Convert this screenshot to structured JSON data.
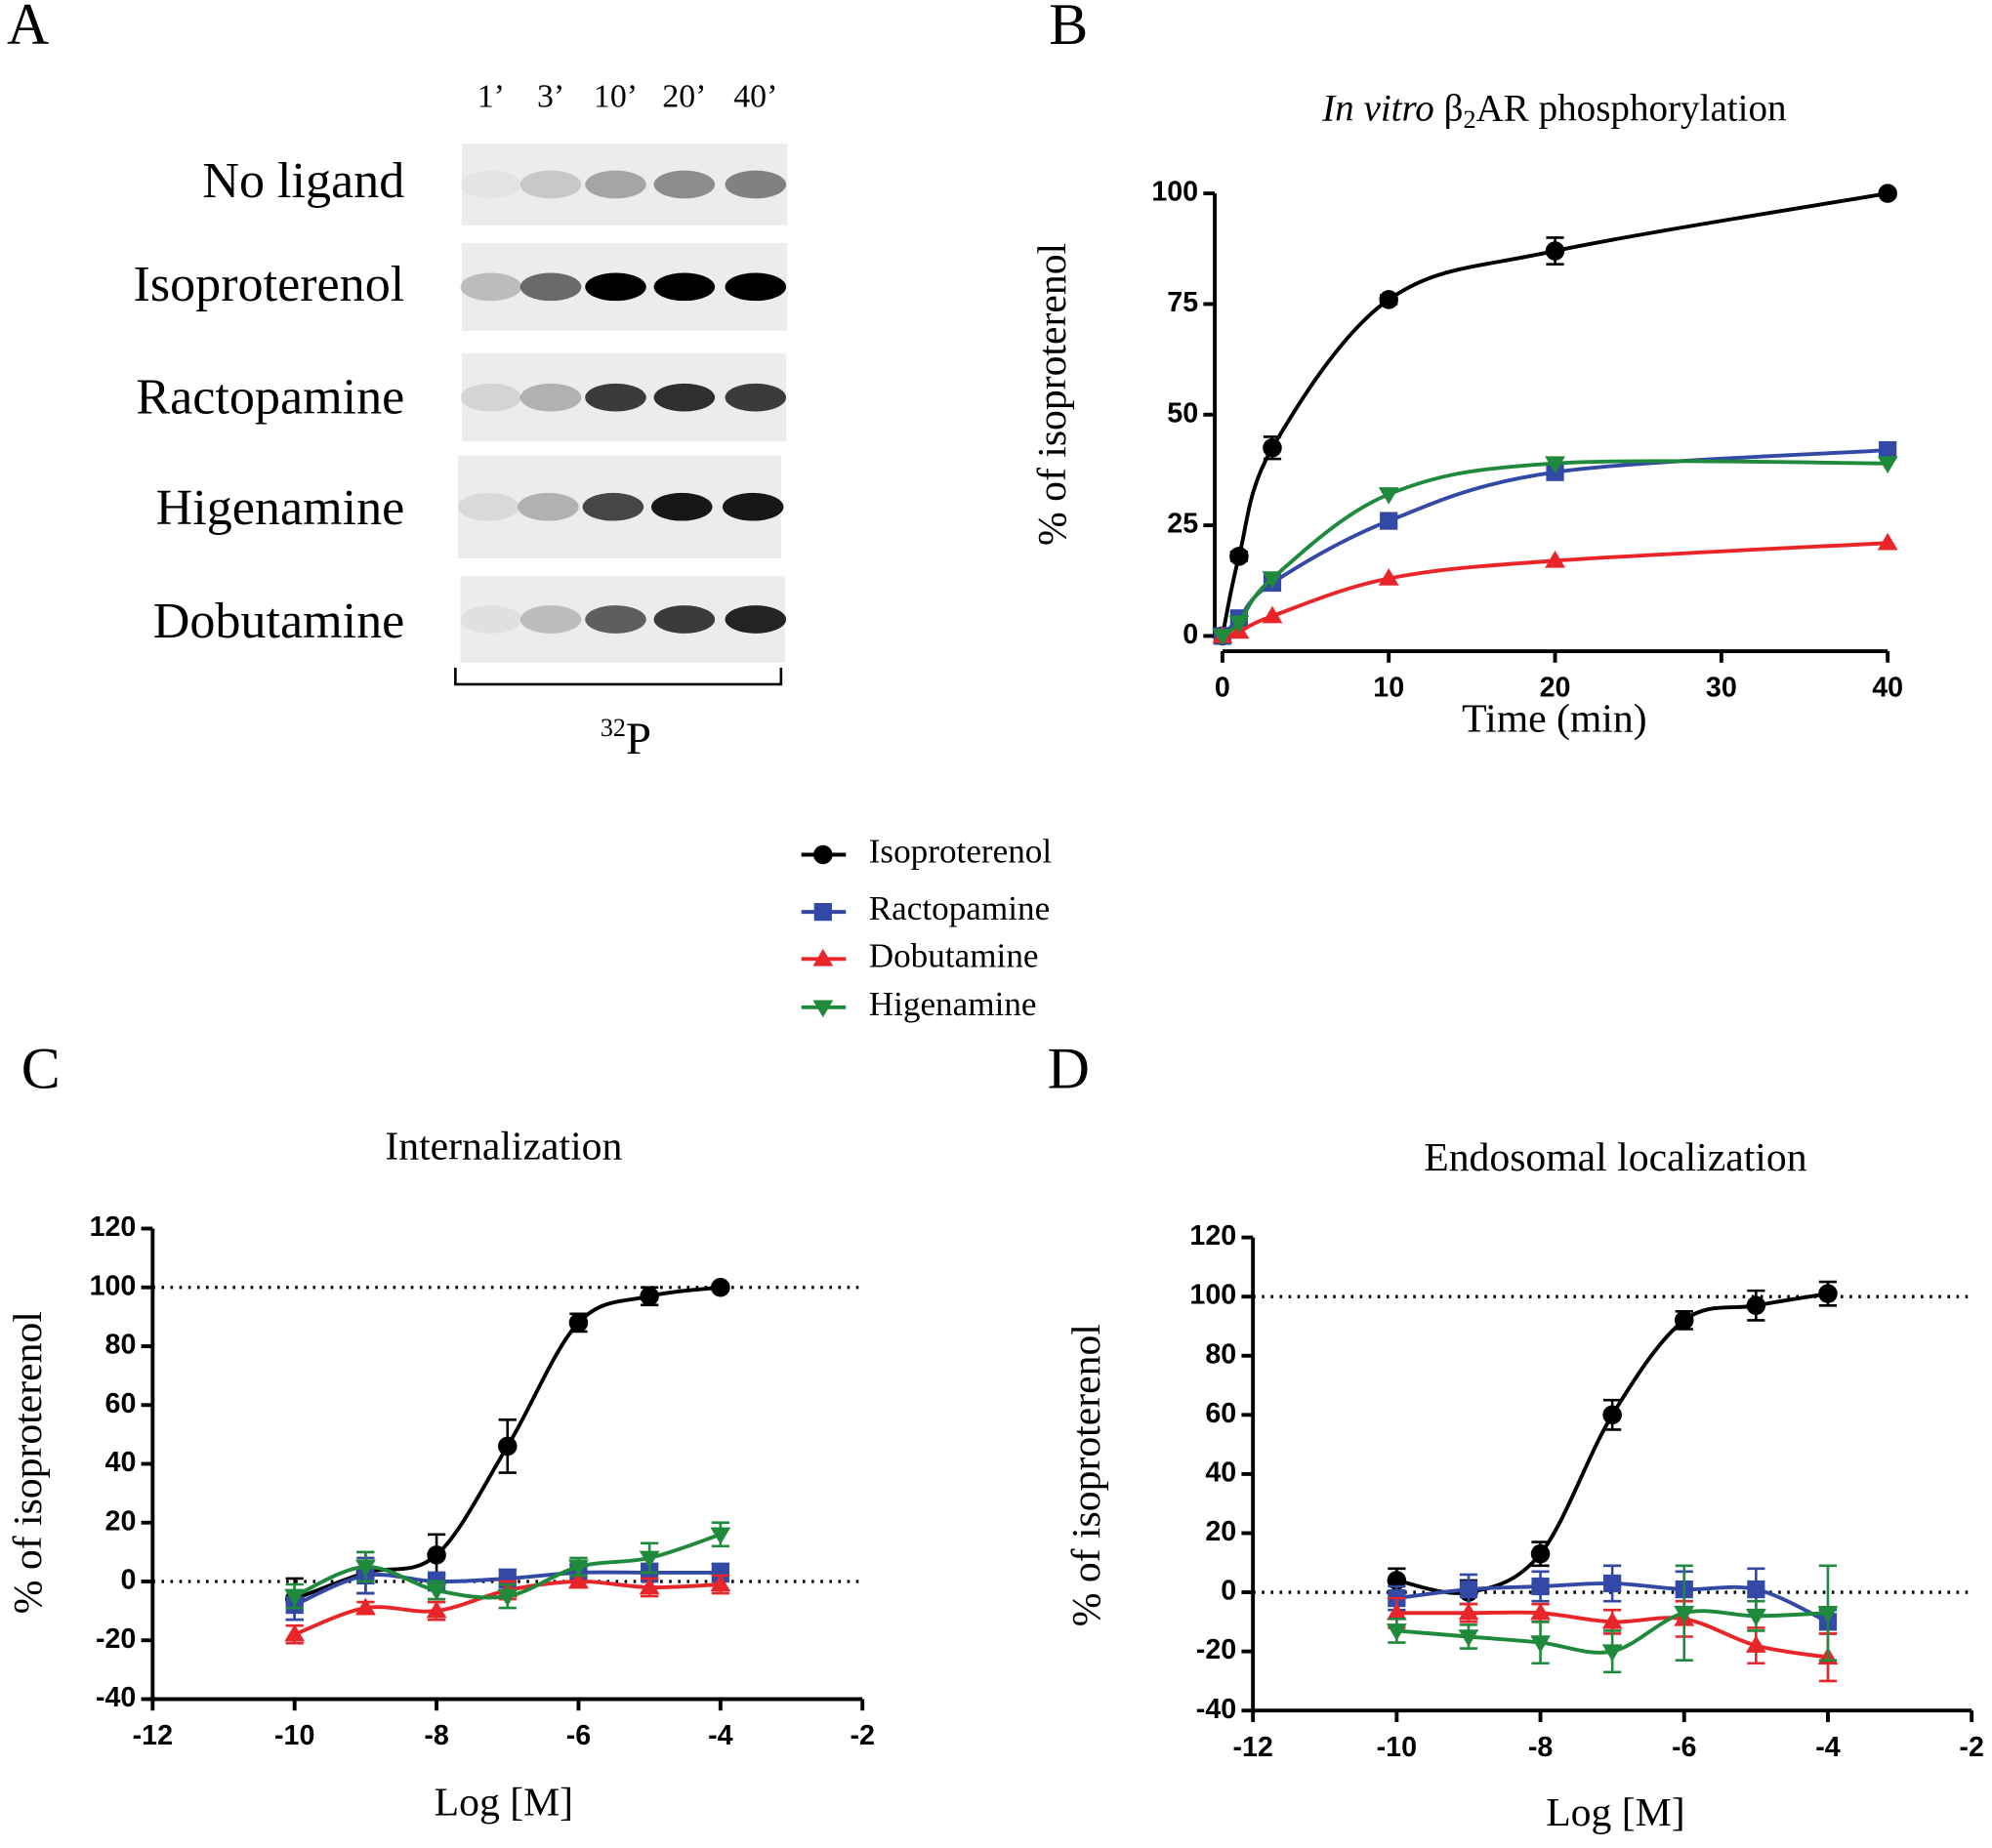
{
  "blot": {
    "panel": "A",
    "time_points": [
      "1’",
      "3’",
      "10’",
      "20’",
      "40’"
    ],
    "rows": [
      "No ligand",
      "Isoproterenol",
      "Ractopamine",
      "Higenamine",
      "Dobutamine"
    ],
    "isotope_mass": "32",
    "isotope_symbol": "P"
  },
  "chart_data": [
    {
      "type": "line",
      "panel": "B",
      "title_parts": [
        {
          "text": "In vitro",
          "style": "italic"
        },
        {
          "text": " β",
          "style": "normal"
        },
        {
          "text": "2",
          "style": "sub"
        },
        {
          "text": "AR phosphorylation",
          "style": "normal"
        }
      ],
      "x_label": "Time (min)",
      "y_label": "% of isoproterenol",
      "x": [
        0,
        1,
        3,
        10,
        20,
        40
      ],
      "xlim": [
        0,
        40
      ],
      "xticks": [
        0,
        10,
        20,
        30,
        40
      ],
      "ylim": [
        0,
        100
      ],
      "yticks": [
        0,
        25,
        50,
        75,
        100
      ],
      "series": [
        {
          "name": "Isoproterenol",
          "color": "#000000",
          "marker": "circle",
          "values": [
            0,
            18,
            42.5,
            76,
            87,
            100
          ],
          "errors": [
            0,
            1,
            2.5,
            1,
            3,
            0.5
          ]
        },
        {
          "name": "Ractopamine",
          "color": "#3349a6",
          "marker": "square",
          "values": [
            0,
            4,
            12,
            26,
            37,
            42
          ]
        },
        {
          "name": "Dobutamine",
          "color": "#e8262a",
          "marker": "triangle-up",
          "values": [
            0,
            1,
            4.5,
            13,
            17,
            21
          ]
        },
        {
          "name": "Higenamine",
          "color": "#1f8a3c",
          "marker": "triangle-down",
          "values": [
            0,
            3,
            13,
            32,
            39,
            39
          ]
        }
      ]
    },
    {
      "type": "line",
      "panel": "C",
      "title": "Internalization",
      "x_label": "Log [M]",
      "y_label": "% of isoproterenol",
      "x": [
        -10,
        -9,
        -8,
        -7,
        -6,
        -5,
        -4
      ],
      "xlim": [
        -12,
        -2
      ],
      "xticks": [
        -12,
        -10,
        -8,
        -6,
        -4,
        -2
      ],
      "ylim": [
        -40,
        120
      ],
      "yticks": [
        -40,
        -20,
        0,
        20,
        40,
        60,
        80,
        100,
        120
      ],
      "reference_lines": [
        0,
        100
      ],
      "series": [
        {
          "name": "Isoproterenol",
          "color": "#000000",
          "marker": "circle",
          "values": [
            -6,
            3,
            9,
            46,
            88,
            97,
            100
          ],
          "errors": [
            7,
            7,
            7,
            9,
            3,
            3,
            1
          ]
        },
        {
          "name": "Ractopamine",
          "color": "#3349a6",
          "marker": "square",
          "values": [
            -8,
            2,
            0,
            1,
            3,
            3,
            3
          ],
          "errors": [
            5,
            6,
            3,
            3,
            3,
            3,
            3
          ]
        },
        {
          "name": "Dobutamine",
          "color": "#e8262a",
          "marker": "triangle-up",
          "values": [
            -18,
            -9,
            -10,
            -3,
            0,
            -2,
            -1
          ],
          "errors": [
            3,
            2,
            3,
            3,
            2,
            3,
            3
          ]
        },
        {
          "name": "Higenamine",
          "color": "#1f8a3c",
          "marker": "triangle-down",
          "values": [
            -5,
            5,
            -3,
            -5,
            5,
            8,
            16
          ],
          "errors": [
            4,
            5,
            3,
            4,
            3,
            5,
            4
          ]
        }
      ]
    },
    {
      "type": "line",
      "panel": "D",
      "title": "Endosomal localization",
      "x_label": "Log [M]",
      "y_label": "% of isoproterenol",
      "x": [
        -10,
        -9,
        -8,
        -7,
        -6,
        -5,
        -4
      ],
      "xlim": [
        -12,
        -2
      ],
      "xticks": [
        -12,
        -10,
        -8,
        -6,
        -4,
        -2
      ],
      "ylim": [
        -40,
        120
      ],
      "yticks": [
        -40,
        -20,
        0,
        20,
        40,
        60,
        80,
        100,
        120
      ],
      "reference_lines": [
        0,
        100
      ],
      "series": [
        {
          "name": "Isoproterenol",
          "color": "#000000",
          "marker": "circle",
          "values": [
            4,
            0,
            13,
            60,
            92,
            97,
            101
          ],
          "errors": [
            4,
            4,
            4,
            5,
            3,
            5,
            4
          ]
        },
        {
          "name": "Ractopamine",
          "color": "#3349a6",
          "marker": "square",
          "values": [
            -2,
            1,
            2,
            3,
            1,
            1,
            -10
          ],
          "errors": [
            4,
            5,
            5,
            6,
            6,
            7,
            4
          ]
        },
        {
          "name": "Dobutamine",
          "color": "#e8262a",
          "marker": "triangle-up",
          "values": [
            -7,
            -7,
            -7,
            -10,
            -9,
            -18,
            -22
          ],
          "errors": [
            5,
            3,
            3,
            4,
            6,
            6,
            8
          ]
        },
        {
          "name": "Higenamine",
          "color": "#1f8a3c",
          "marker": "triangle-down",
          "values": [
            -13,
            -15,
            -17,
            -20,
            -7,
            -8,
            -7
          ],
          "errors": [
            4,
            4,
            7,
            7,
            16,
            5,
            16
          ]
        }
      ]
    }
  ]
}
